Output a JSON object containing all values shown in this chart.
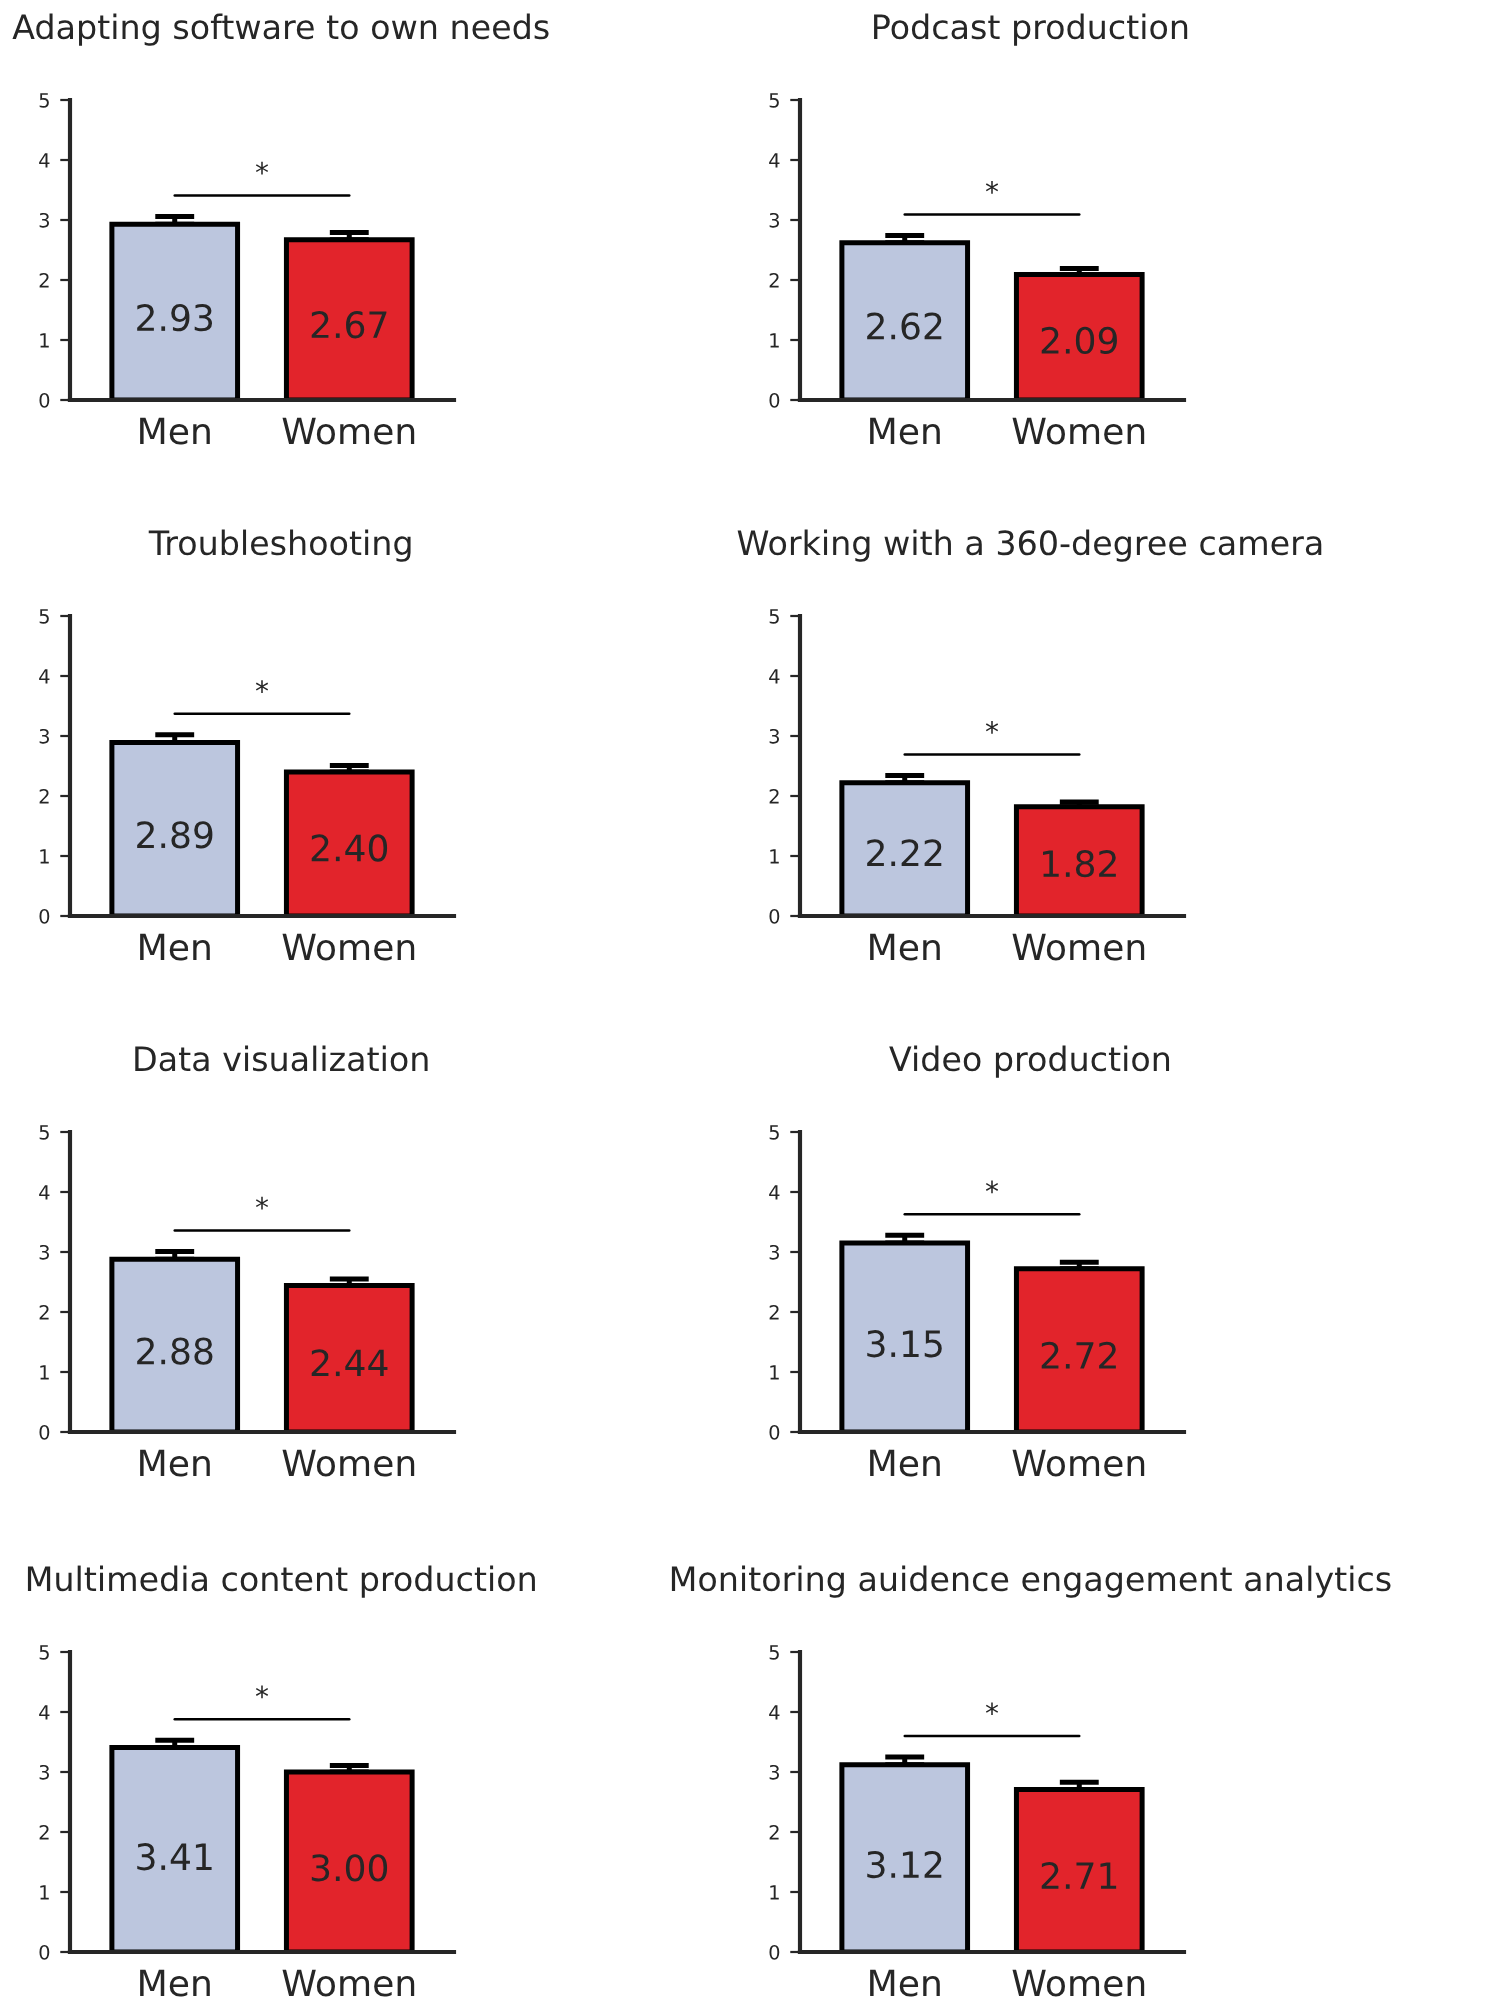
{
  "chart_data": [
    {
      "type": "bar",
      "title": "Adapting software to own needs",
      "categories": [
        "Men",
        "Women"
      ],
      "values": [
        2.93,
        2.67
      ],
      "errors": [
        0.13,
        0.12
      ],
      "colors": [
        "#bcc6de",
        "#e2242b"
      ],
      "ylim": [
        0,
        5
      ],
      "yticks": [
        0,
        1,
        2,
        3,
        4,
        5
      ],
      "value_labels": [
        "2.93",
        "2.67"
      ],
      "annotations": [
        "*"
      ],
      "grid": false,
      "legend": false
    },
    {
      "type": "bar",
      "title": "Podcast production",
      "categories": [
        "Men",
        "Women"
      ],
      "values": [
        2.62,
        2.09
      ],
      "errors": [
        0.12,
        0.1
      ],
      "colors": [
        "#bcc6de",
        "#e2242b"
      ],
      "ylim": [
        0,
        5
      ],
      "yticks": [
        0,
        1,
        2,
        3,
        4,
        5
      ],
      "value_labels": [
        "2.62",
        "2.09"
      ],
      "annotations": [
        "*"
      ],
      "grid": false,
      "legend": false
    },
    {
      "type": "bar",
      "title": "Troubleshooting",
      "categories": [
        "Men",
        "Women"
      ],
      "values": [
        2.89,
        2.4
      ],
      "errors": [
        0.13,
        0.11
      ],
      "colors": [
        "#bcc6de",
        "#e2242b"
      ],
      "ylim": [
        0,
        5
      ],
      "yticks": [
        0,
        1,
        2,
        3,
        4,
        5
      ],
      "value_labels": [
        "2.89",
        "2.40"
      ],
      "annotations": [
        "*"
      ],
      "grid": false,
      "legend": false
    },
    {
      "type": "bar",
      "title": "Working with a 360-degree camera",
      "categories": [
        "Men",
        "Women"
      ],
      "values": [
        2.22,
        1.82
      ],
      "errors": [
        0.12,
        0.08
      ],
      "colors": [
        "#bcc6de",
        "#e2242b"
      ],
      "ylim": [
        0,
        5
      ],
      "yticks": [
        0,
        1,
        2,
        3,
        4,
        5
      ],
      "value_labels": [
        "2.22",
        "1.82"
      ],
      "annotations": [
        "*"
      ],
      "grid": false,
      "legend": false
    },
    {
      "type": "bar",
      "title": "Data visualization",
      "categories": [
        "Men",
        "Women"
      ],
      "values": [
        2.88,
        2.44
      ],
      "errors": [
        0.13,
        0.11
      ],
      "colors": [
        "#bcc6de",
        "#e2242b"
      ],
      "ylim": [
        0,
        5
      ],
      "yticks": [
        0,
        1,
        2,
        3,
        4,
        5
      ],
      "value_labels": [
        "2.88",
        "2.44"
      ],
      "annotations": [
        "*"
      ],
      "grid": false,
      "legend": false
    },
    {
      "type": "bar",
      "title": "Video production",
      "categories": [
        "Men",
        "Women"
      ],
      "values": [
        3.15,
        2.72
      ],
      "errors": [
        0.13,
        0.11
      ],
      "colors": [
        "#bcc6de",
        "#e2242b"
      ],
      "ylim": [
        0,
        5
      ],
      "yticks": [
        0,
        1,
        2,
        3,
        4,
        5
      ],
      "value_labels": [
        "3.15",
        "2.72"
      ],
      "annotations": [
        "*"
      ],
      "grid": false,
      "legend": false
    },
    {
      "type": "bar",
      "title": "Multimedia content production",
      "categories": [
        "Men",
        "Women"
      ],
      "values": [
        3.41,
        3.0
      ],
      "errors": [
        0.12,
        0.11
      ],
      "colors": [
        "#bcc6de",
        "#e2242b"
      ],
      "ylim": [
        0,
        5
      ],
      "yticks": [
        0,
        1,
        2,
        3,
        4,
        5
      ],
      "value_labels": [
        "3.41",
        "3.00"
      ],
      "annotations": [
        "*"
      ],
      "grid": false,
      "legend": false
    },
    {
      "type": "bar",
      "title": "Monitoring auidence engagement analytics",
      "categories": [
        "Men",
        "Women"
      ],
      "values": [
        3.12,
        2.71
      ],
      "errors": [
        0.13,
        0.12
      ],
      "colors": [
        "#bcc6de",
        "#e2242b"
      ],
      "ylim": [
        0,
        5
      ],
      "yticks": [
        0,
        1,
        2,
        3,
        4,
        5
      ],
      "value_labels": [
        "3.12",
        "2.71"
      ],
      "annotations": [
        "*"
      ],
      "grid": false,
      "legend": false
    }
  ]
}
